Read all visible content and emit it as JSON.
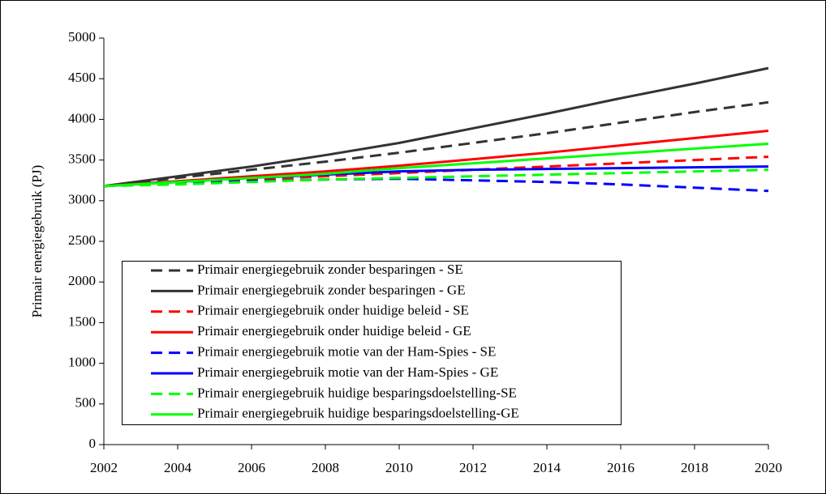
{
  "chart_data": {
    "type": "line",
    "y_label": "Primair energiegebruik (PJ)",
    "x": [
      2002,
      2004,
      2006,
      2008,
      2010,
      2012,
      2014,
      2016,
      2018,
      2020
    ],
    "xlim": [
      2002,
      2020
    ],
    "xticks": [
      2002,
      2004,
      2006,
      2008,
      2010,
      2012,
      2014,
      2016,
      2018,
      2020
    ],
    "ylim": [
      0,
      5000
    ],
    "yticks": [
      0,
      500,
      1000,
      1500,
      2000,
      2500,
      3000,
      3500,
      4000,
      4500,
      5000
    ],
    "grid": false,
    "legend": "bottom-left",
    "series": [
      {
        "name": "Primair energiegebruik zonder besparingen - SE",
        "color": "#333333",
        "style": "dashed",
        "values": [
          3180,
          3280,
          3380,
          3480,
          3590,
          3710,
          3830,
          3960,
          4090,
          4210
        ]
      },
      {
        "name": "Primair energiegebruik zonder besparingen - GE",
        "color": "#333333",
        "style": "solid",
        "values": [
          3180,
          3300,
          3420,
          3560,
          3710,
          3890,
          4070,
          4260,
          4440,
          4630
        ]
      },
      {
        "name": "Primair energiegebruik onder huidige beleid - SE",
        "color": "#ff0000",
        "style": "dashed",
        "values": [
          3180,
          3220,
          3260,
          3300,
          3340,
          3380,
          3420,
          3460,
          3500,
          3540
        ]
      },
      {
        "name": "Primair energiegebruik onder huidige beleid - GE",
        "color": "#ff0000",
        "style": "solid",
        "values": [
          3180,
          3240,
          3300,
          3360,
          3430,
          3510,
          3590,
          3680,
          3770,
          3860
        ]
      },
      {
        "name": "Primair energiegebruik motie van der Ham-Spies - SE",
        "color": "#0000ff",
        "style": "dashed",
        "values": [
          3180,
          3210,
          3240,
          3260,
          3270,
          3250,
          3230,
          3200,
          3160,
          3120
        ]
      },
      {
        "name": "Primair energiegebruik motie van der Ham-Spies - GE",
        "color": "#0000ff",
        "style": "solid",
        "values": [
          3180,
          3230,
          3280,
          3320,
          3360,
          3380,
          3390,
          3400,
          3410,
          3420
        ]
      },
      {
        "name": "Primair energiegebruik huidige besparingsdoelstelling-SE",
        "color": "#00ff00",
        "style": "dashed",
        "values": [
          3180,
          3200,
          3230,
          3260,
          3280,
          3300,
          3320,
          3340,
          3360,
          3380
        ]
      },
      {
        "name": "Primair energiegebruik huidige besparingsdoelstelling-GE",
        "color": "#00ff00",
        "style": "solid",
        "values": [
          3180,
          3230,
          3280,
          3330,
          3400,
          3460,
          3520,
          3580,
          3640,
          3700
        ]
      }
    ]
  }
}
